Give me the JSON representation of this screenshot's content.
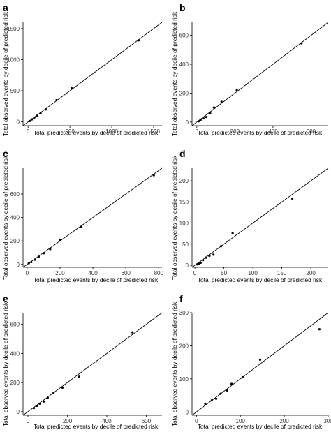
{
  "chart_data": [
    {
      "panel": "a",
      "type": "scatter",
      "xlabel": "Total predicted events by decile of predicted risk",
      "ylabel": "Total observed events by decile of predicted risk",
      "xlim": [
        -60,
        1600
      ],
      "ylim": [
        -60,
        1600
      ],
      "xticks": [
        0,
        500,
        1000,
        1500
      ],
      "yticks": [
        0,
        500,
        1000,
        1500
      ],
      "reference_line": "y = x",
      "points": [
        [
          20,
          15
        ],
        [
          45,
          40
        ],
        [
          75,
          70
        ],
        [
          110,
          100
        ],
        [
          150,
          140
        ],
        [
          210,
          200
        ],
        [
          340,
          350
        ],
        [
          520,
          540
        ],
        [
          1320,
          1310
        ]
      ]
    },
    {
      "panel": "b",
      "type": "scatter",
      "xlabel": "Total predicted events by decile of predicted risk",
      "ylabel": "Total observed events by decile of predicted risk",
      "xlim": [
        -25,
        690
      ],
      "ylim": [
        -25,
        690
      ],
      "xticks": [
        0,
        200,
        400,
        600
      ],
      "yticks": [
        0,
        200,
        400,
        600
      ],
      "reference_line": "y = x",
      "points": [
        [
          10,
          5
        ],
        [
          20,
          15
        ],
        [
          35,
          25
        ],
        [
          50,
          35
        ],
        [
          70,
          60
        ],
        [
          90,
          100
        ],
        [
          130,
          140
        ],
        [
          210,
          220
        ],
        [
          550,
          545
        ]
      ]
    },
    {
      "panel": "c",
      "type": "scatter",
      "xlabel": "Total predicted events by decile of predicted risk",
      "ylabel": "Total observed events by decile of predicted risk",
      "xlim": [
        -25,
        820
      ],
      "ylim": [
        -25,
        820
      ],
      "xticks": [
        0,
        200,
        400,
        600,
        800
      ],
      "yticks": [
        0,
        200,
        400,
        600
      ],
      "reference_line": "y = x",
      "points": [
        [
          10,
          10
        ],
        [
          25,
          20
        ],
        [
          45,
          40
        ],
        [
          70,
          65
        ],
        [
          100,
          95
        ],
        [
          140,
          130
        ],
        [
          200,
          210
        ],
        [
          330,
          320
        ],
        [
          770,
          760
        ]
      ]
    },
    {
      "panel": "d",
      "type": "scatter",
      "xlabel": "Total predicted events by decile of predicted risk",
      "ylabel": "Total observed events by decile of predicted risk",
      "xlim": [
        -5,
        230
      ],
      "ylim": [
        -5,
        230
      ],
      "xticks": [
        0,
        50,
        100,
        150,
        200
      ],
      "yticks": [
        0,
        50,
        100,
        150,
        200
      ],
      "reference_line": "y = x",
      "points": [
        [
          4,
          2
        ],
        [
          7,
          4
        ],
        [
          10,
          6
        ],
        [
          14,
          12
        ],
        [
          19,
          18
        ],
        [
          25,
          22
        ],
        [
          32,
          25
        ],
        [
          45,
          45
        ],
        [
          65,
          76
        ],
        [
          168,
          158
        ]
      ]
    },
    {
      "panel": "e",
      "type": "scatter",
      "xlabel": "Total predicted events by decile of predicted risk",
      "ylabel": "Total observed events by decile of predicted risk",
      "xlim": [
        -25,
        680
      ],
      "ylim": [
        -25,
        680
      ],
      "xticks": [
        0,
        200,
        400,
        600
      ],
      "yticks": [
        0,
        200,
        400,
        600
      ],
      "reference_line": "y = x",
      "points": [
        [
          30,
          25
        ],
        [
          45,
          40
        ],
        [
          60,
          55
        ],
        [
          80,
          70
        ],
        [
          100,
          95
        ],
        [
          130,
          130
        ],
        [
          175,
          165
        ],
        [
          260,
          240
        ],
        [
          530,
          545
        ]
      ]
    },
    {
      "panel": "f",
      "type": "scatter",
      "xlabel": "Total predicted events by decile of predicted risk",
      "ylabel": "Total observed events by decile of predicted risk",
      "xlim": [
        -10,
        300
      ],
      "ylim": [
        -10,
        300
      ],
      "xticks": [
        0,
        100,
        200,
        300
      ],
      "yticks": [
        0,
        100,
        200,
        300
      ],
      "reference_line": "y = x",
      "points": [
        [
          20,
          25
        ],
        [
          35,
          35
        ],
        [
          45,
          40
        ],
        [
          55,
          55
        ],
        [
          70,
          65
        ],
        [
          80,
          85
        ],
        [
          105,
          105
        ],
        [
          145,
          158
        ],
        [
          280,
          250
        ]
      ]
    }
  ]
}
